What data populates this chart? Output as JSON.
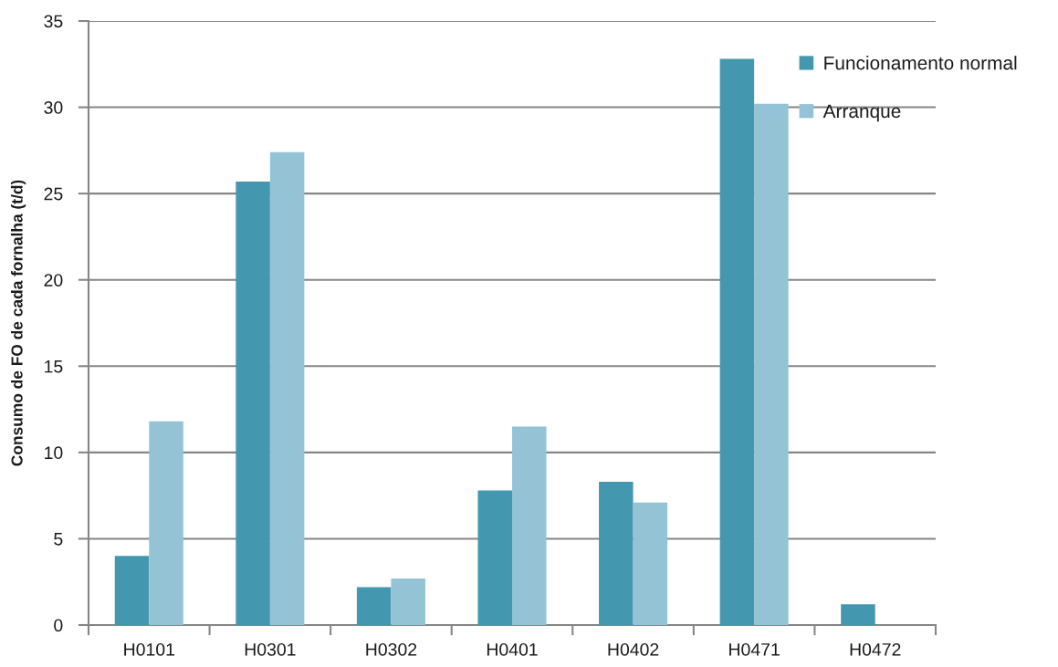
{
  "chart_data": {
    "type": "bar",
    "ylabel": "Consumo de FO de cada fornalha (t/d)",
    "categories": [
      "H0101",
      "H0301",
      "H0302",
      "H0401",
      "H0402",
      "H0471",
      "H0472"
    ],
    "series": [
      {
        "name": "Funcionamento normal",
        "color": "#4398b0",
        "values": [
          4.0,
          25.7,
          2.2,
          7.8,
          8.3,
          32.8,
          1.2
        ]
      },
      {
        "name": "Arranque",
        "color": "#94c3d5",
        "values": [
          11.8,
          27.4,
          2.7,
          11.5,
          7.1,
          30.2,
          null
        ]
      }
    ],
    "ylim": [
      0,
      35
    ],
    "yticks": [
      0,
      5,
      10,
      15,
      20,
      25,
      30,
      35
    ],
    "grid": "y",
    "legend": "top right"
  }
}
